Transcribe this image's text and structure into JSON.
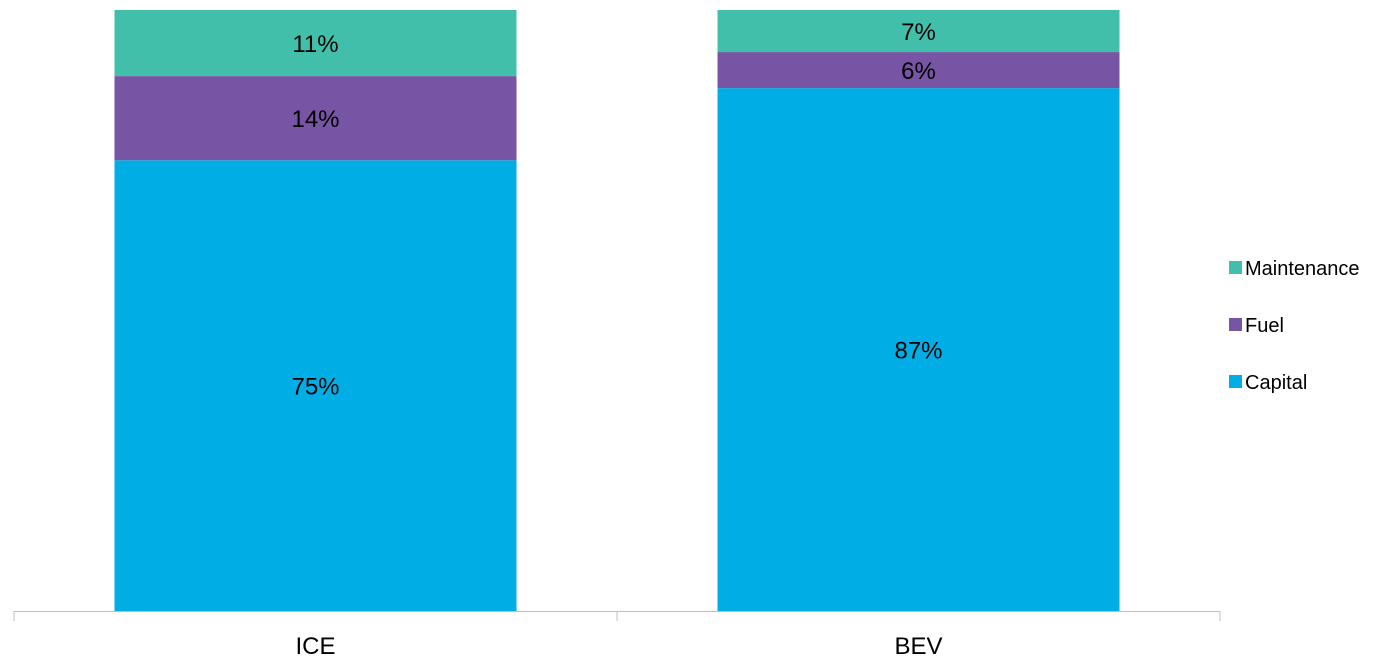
{
  "chart_data": {
    "type": "bar",
    "stacked": true,
    "percent_stacked": true,
    "categories": [
      "ICE",
      "BEV"
    ],
    "series": [
      {
        "name": "Capital",
        "values": [
          75,
          87
        ],
        "labels": [
          "75%",
          "87%"
        ],
        "color": "#00AEE5"
      },
      {
        "name": "Fuel",
        "values": [
          14,
          6
        ],
        "labels": [
          "14%",
          "6%"
        ],
        "color": "#7754A4"
      },
      {
        "name": "Maintenance",
        "values": [
          11,
          7
        ],
        "labels": [
          "11%",
          "7%"
        ],
        "color": "#42BFAA"
      }
    ],
    "ylim": [
      0,
      100
    ],
    "grid": false,
    "legend": {
      "position": "right",
      "entries": [
        "Maintenance",
        "Fuel",
        "Capital"
      ]
    },
    "title": "",
    "xlabel": "",
    "ylabel": ""
  }
}
